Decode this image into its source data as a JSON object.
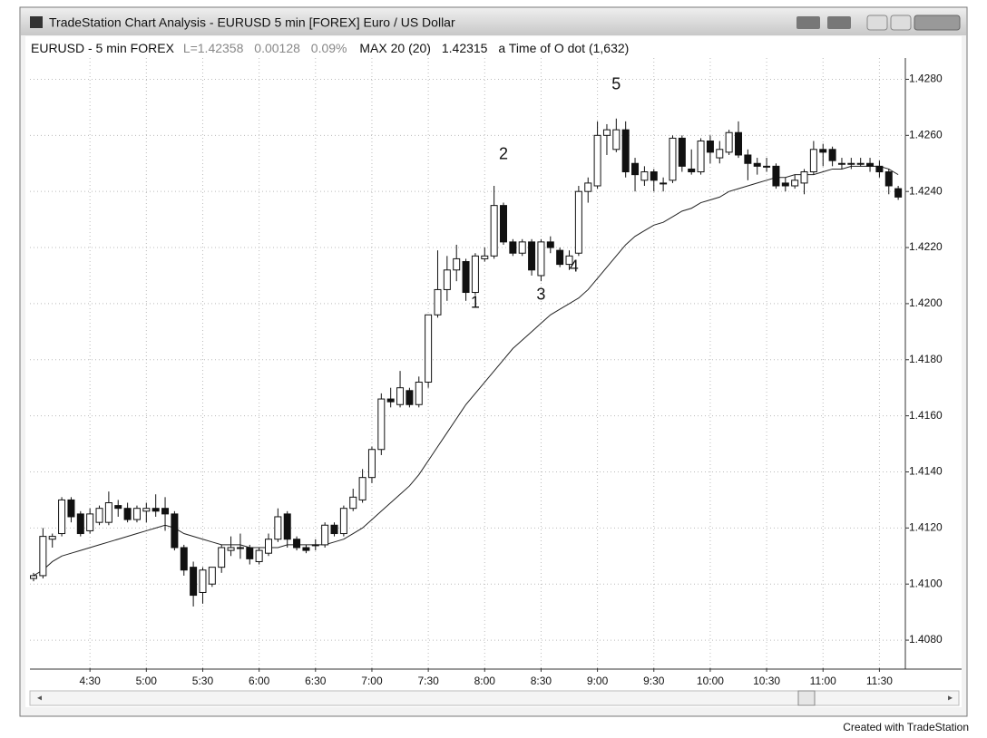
{
  "window_title": "TradeStation Chart Analysis - EURUSD 5 min [FOREX] Euro / US Dollar",
  "header": {
    "symbol": "EURUSD - 5 min FOREX",
    "last": "L=1.42358",
    "change": "0.00128",
    "change_pct": "0.09%",
    "indicator": "MAX 20 (20)",
    "indicator_value": "1.42315",
    "note": "a Time of O dot (1,632)"
  },
  "footer": "Created with TradeStation",
  "chart_data": {
    "type": "candlestick",
    "categories": [
      null,
      null,
      null,
      null,
      null,
      null,
      "4:30",
      null,
      null,
      null,
      null,
      null,
      "5:00",
      null,
      null,
      null,
      null,
      null,
      "5:30",
      null,
      null,
      null,
      null,
      null,
      "6:00",
      null,
      null,
      null,
      null,
      null,
      "6:30",
      null,
      null,
      null,
      null,
      null,
      "7:00",
      null,
      null,
      null,
      null,
      null,
      "7:30",
      null,
      null,
      null,
      null,
      null,
      "8:00",
      null,
      null,
      null,
      null,
      null,
      "8:30",
      null,
      null,
      null,
      null,
      null,
      "9:00",
      null,
      null,
      null,
      null,
      null,
      "9:30",
      null,
      null,
      null,
      null,
      null,
      "10:00",
      null,
      null,
      null,
      null,
      null,
      "10:30",
      null,
      null,
      null,
      null,
      null,
      "11:00",
      null,
      null,
      null,
      null,
      null,
      "11:30",
      null,
      null
    ],
    "open": [
      1.4102,
      1.4103,
      1.4116,
      1.4118,
      1.413,
      1.4125,
      1.4119,
      1.4122,
      1.4122,
      1.4128,
      1.4127,
      1.4123,
      1.4126,
      1.4127,
      1.4127,
      1.4125,
      1.4113,
      1.4106,
      1.4097,
      1.41,
      1.4106,
      1.4112,
      1.4113,
      1.4113,
      1.4108,
      1.4111,
      1.4116,
      1.4125,
      1.4116,
      1.4113,
      1.4114,
      1.4114,
      1.4121,
      1.4118,
      1.4127,
      1.413,
      1.4138,
      1.4148,
      1.4166,
      1.4164,
      1.4169,
      1.4164,
      1.4172,
      1.4196,
      1.4205,
      1.4212,
      1.4215,
      1.4204,
      1.4216,
      1.4217,
      1.4235,
      1.4222,
      1.4218,
      1.4222,
      1.421,
      1.4222,
      1.4219,
      1.4214,
      1.4218,
      1.424,
      1.4242,
      1.426,
      1.4255,
      1.4262,
      1.425,
      1.4244,
      1.4247,
      1.4243,
      1.4244,
      1.4259,
      1.4248,
      1.4247,
      1.4258,
      1.4252,
      1.4254,
      1.4261,
      1.4253,
      1.425,
      1.4249,
      1.4249,
      1.4243,
      1.4242,
      1.4243,
      1.4247,
      1.4255,
      1.4255,
      1.425,
      1.425,
      1.425,
      1.425,
      1.4249,
      1.4247,
      1.4241
    ],
    "high": [
      1.4104,
      1.412,
      1.4118,
      1.4131,
      1.4131,
      1.4126,
      1.4127,
      1.4128,
      1.4133,
      1.413,
      1.4129,
      1.4128,
      1.4129,
      1.4132,
      1.4131,
      1.4126,
      1.4114,
      1.4108,
      1.4106,
      1.4106,
      1.4114,
      1.4117,
      1.4118,
      1.4114,
      1.4113,
      1.4118,
      1.4127,
      1.4126,
      1.4117,
      1.4114,
      1.4116,
      1.4122,
      1.4122,
      1.4128,
      1.4134,
      1.4141,
      1.4149,
      1.4168,
      1.417,
      1.4176,
      1.417,
      1.4174,
      1.4196,
      1.4219,
      1.4217,
      1.4221,
      1.4216,
      1.4218,
      1.422,
      1.4242,
      1.4236,
      1.4223,
      1.4223,
      1.4223,
      1.4223,
      1.4224,
      1.422,
      1.4219,
      1.4242,
      1.4245,
      1.4265,
      1.4264,
      1.4266,
      1.4265,
      1.4252,
      1.4249,
      1.4248,
      1.4245,
      1.426,
      1.426,
      1.4255,
      1.4259,
      1.426,
      1.4258,
      1.4262,
      1.4265,
      1.4255,
      1.4252,
      1.4252,
      1.425,
      1.4245,
      1.4246,
      1.4248,
      1.4258,
      1.4257,
      1.4256,
      1.4252,
      1.4252,
      1.4252,
      1.4252,
      1.4251,
      1.4248,
      1.4242
    ],
    "low": [
      1.4101,
      1.4102,
      1.4113,
      1.4117,
      1.4122,
      1.4117,
      1.4118,
      1.4121,
      1.4121,
      1.4124,
      1.4122,
      1.4122,
      1.4122,
      1.4124,
      1.4119,
      1.4112,
      1.4103,
      1.4092,
      1.4093,
      1.4099,
      1.4104,
      1.411,
      1.4109,
      1.4107,
      1.4107,
      1.411,
      1.4115,
      1.4113,
      1.4112,
      1.4111,
      1.4112,
      1.4113,
      1.4117,
      1.4117,
      1.4126,
      1.4129,
      1.4136,
      1.4146,
      1.4163,
      1.4163,
      1.4163,
      1.4163,
      1.417,
      1.4195,
      1.4201,
      1.4208,
      1.4201,
      1.4203,
      1.4215,
      1.4216,
      1.4221,
      1.4217,
      1.4217,
      1.421,
      1.4208,
      1.4218,
      1.4213,
      1.4212,
      1.4217,
      1.4236,
      1.4241,
      1.4253,
      1.4254,
      1.4245,
      1.424,
      1.4242,
      1.424,
      1.424,
      1.4243,
      1.4247,
      1.4246,
      1.4246,
      1.425,
      1.425,
      1.4253,
      1.4252,
      1.4244,
      1.4246,
      1.4247,
      1.4241,
      1.424,
      1.4241,
      1.4239,
      1.4246,
      1.4249,
      1.4249,
      1.4248,
      1.4248,
      1.4249,
      1.4247,
      1.4245,
      1.4239,
      1.4237
    ],
    "close": [
      1.4103,
      1.4117,
      1.4117,
      1.413,
      1.4124,
      1.4118,
      1.4125,
      1.4127,
      1.4129,
      1.4127,
      1.4123,
      1.4127,
      1.4127,
      1.4126,
      1.4125,
      1.4113,
      1.4105,
      1.4096,
      1.4105,
      1.4106,
      1.4113,
      1.4113,
      1.4113,
      1.4109,
      1.4112,
      1.4116,
      1.4124,
      1.4116,
      1.4113,
      1.4112,
      1.4114,
      1.4121,
      1.4118,
      1.4127,
      1.4131,
      1.4138,
      1.4148,
      1.4166,
      1.4165,
      1.417,
      1.4164,
      1.4172,
      1.4196,
      1.4205,
      1.4212,
      1.4216,
      1.4204,
      1.4217,
      1.4217,
      1.4235,
      1.4222,
      1.4218,
      1.4222,
      1.4212,
      1.4222,
      1.422,
      1.4214,
      1.4217,
      1.424,
      1.4243,
      1.426,
      1.4262,
      1.4262,
      1.4247,
      1.4246,
      1.4247,
      1.4244,
      1.4243,
      1.4259,
      1.4249,
      1.4247,
      1.4258,
      1.4254,
      1.4255,
      1.4261,
      1.4253,
      1.425,
      1.4249,
      1.4249,
      1.4242,
      1.4242,
      1.4244,
      1.4247,
      1.4255,
      1.4254,
      1.4251,
      1.425,
      1.425,
      1.425,
      1.4249,
      1.4247,
      1.4242,
      1.4238
    ],
    "series": [
      {
        "name": "MAX 20 (20)",
        "color": "#222222",
        "values": [
          1.4103,
          1.4105,
          1.4108,
          1.411,
          1.4111,
          1.4112,
          1.4113,
          1.4114,
          1.4115,
          1.4116,
          1.4117,
          1.4118,
          1.4119,
          1.412,
          1.4121,
          1.412,
          1.4118,
          1.4117,
          1.4116,
          1.4115,
          1.4114,
          1.4114,
          1.4114,
          1.4113,
          1.4113,
          1.4113,
          1.4113,
          1.4114,
          1.4114,
          1.4114,
          1.4114,
          1.4114,
          1.4115,
          1.4116,
          1.4118,
          1.412,
          1.4123,
          1.4126,
          1.4129,
          1.4132,
          1.4135,
          1.4139,
          1.4144,
          1.4149,
          1.4154,
          1.4159,
          1.4164,
          1.4168,
          1.4172,
          1.4176,
          1.418,
          1.4184,
          1.4187,
          1.419,
          1.4193,
          1.4196,
          1.4198,
          1.42,
          1.4202,
          1.4205,
          1.4209,
          1.4213,
          1.4217,
          1.4221,
          1.4224,
          1.4226,
          1.4228,
          1.4229,
          1.4231,
          1.4233,
          1.4234,
          1.4236,
          1.4237,
          1.4238,
          1.424,
          1.4241,
          1.4242,
          1.4243,
          1.4244,
          1.4245,
          1.4245,
          1.4246,
          1.4246,
          1.4246,
          1.4247,
          1.4248,
          1.4248,
          1.4249,
          1.4249,
          1.4249,
          1.4249,
          1.4248,
          1.4246
        ]
      }
    ],
    "up_color": "#ffffff",
    "down_color": "#111111",
    "annotations": [
      "1",
      "2",
      "3",
      "4",
      "5"
    ],
    "ylim": [
      1.407,
      1.4285
    ],
    "yticks": [
      {
        "value": 1.408,
        "label": "1.4080"
      },
      {
        "value": 1.41,
        "label": "1.4100"
      },
      {
        "value": 1.412,
        "label": "1.4120"
      },
      {
        "value": 1.414,
        "label": "1.4140"
      },
      {
        "value": 1.416,
        "label": "1.4160"
      },
      {
        "value": 1.418,
        "label": "1.4180"
      },
      {
        "value": 1.42,
        "label": "1.4200"
      },
      {
        "value": 1.422,
        "label": "1.4220"
      },
      {
        "value": 1.424,
        "label": "1.4240"
      },
      {
        "value": 1.426,
        "label": "1.4260"
      },
      {
        "value": 1.428,
        "label": "1.4280"
      }
    ],
    "grid": true
  }
}
